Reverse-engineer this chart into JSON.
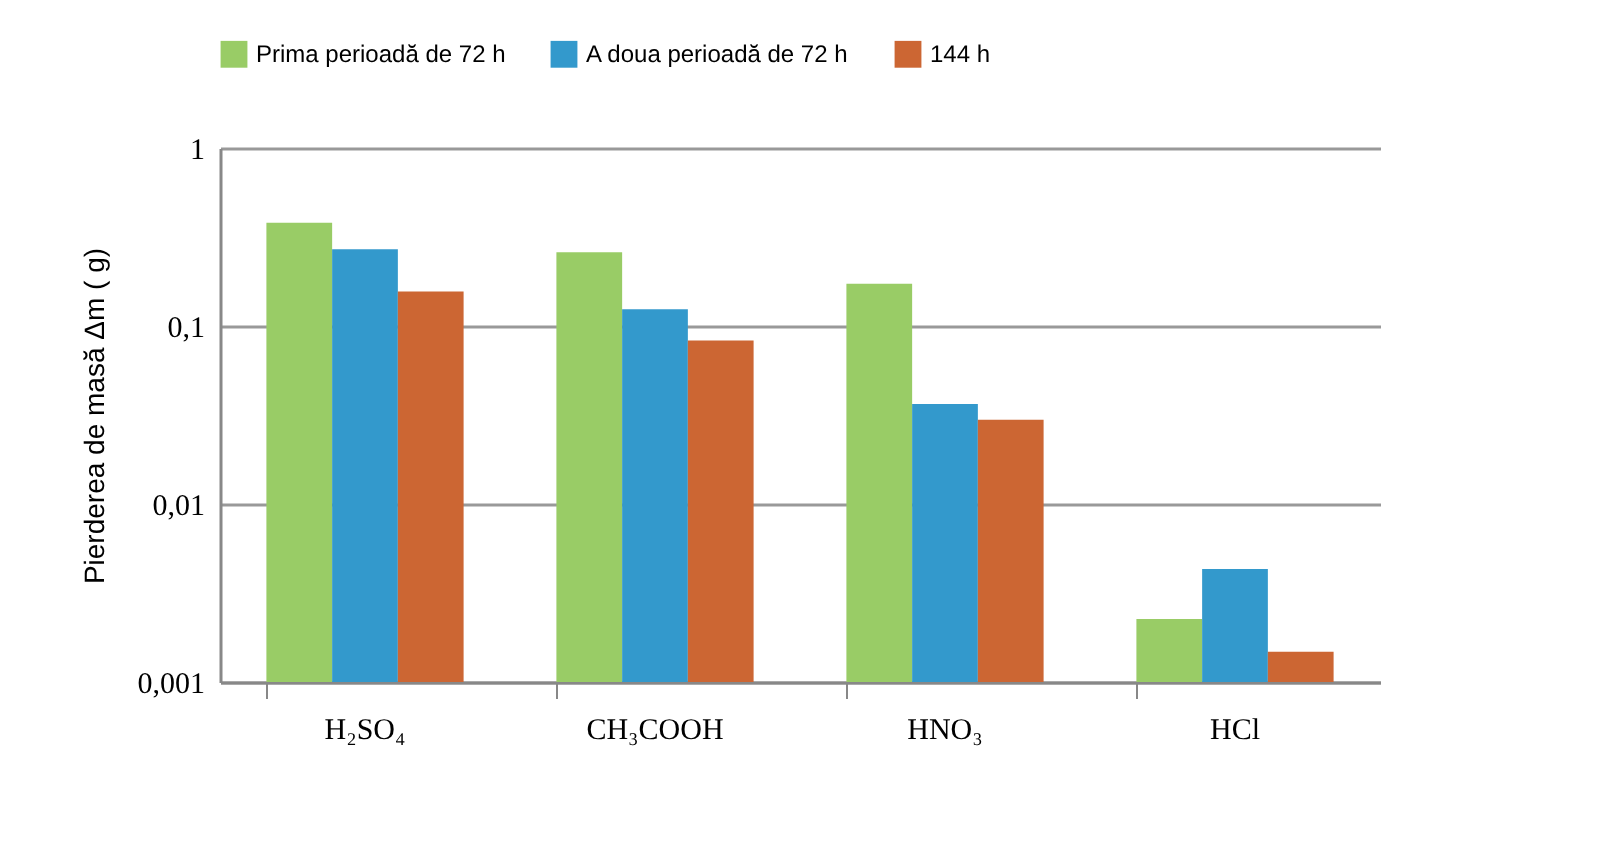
{
  "chart_data": {
    "type": "bar",
    "ylabel": "Pierderea de masă  Δm ( g)",
    "categories": [
      "H₂SO₄",
      "CH₃COOH",
      "HNO₃",
      "HCl"
    ],
    "series": [
      {
        "name": "Prima perioadă de 72 h",
        "color": "#99cc66",
        "values": [
          0.38,
          0.26,
          0.173,
          0.00226
        ]
      },
      {
        "name": "A doua perioadă de 72 h",
        "color": "#3399cc",
        "values": [
          0.27,
          0.124,
          0.0365,
          0.00432
        ]
      },
      {
        "name": "144 h",
        "color": "#cc6633",
        "values": [
          0.156,
          0.083,
          0.0297,
          0.00148
        ]
      }
    ],
    "log": true,
    "ylim": [
      0.001,
      1
    ],
    "yticks": [
      {
        "value": 0.001,
        "label": "0,001"
      },
      {
        "value": 0.01,
        "label": "0,01"
      },
      {
        "value": 0.1,
        "label": "0,1"
      },
      1
    ],
    "grid": "y",
    "legend": "top"
  }
}
